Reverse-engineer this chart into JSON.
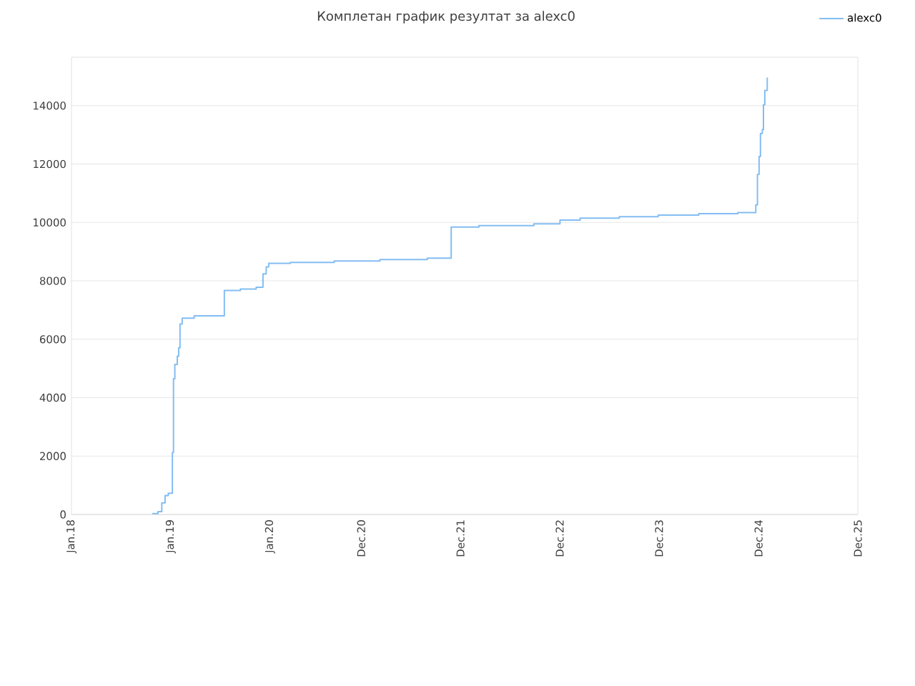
{
  "chart_data": {
    "type": "step",
    "title": "Комплетан график резултат за alexc0",
    "x": [
      "2018-10-25",
      "2018-11-15",
      "2018-11-29",
      "2018-12-11",
      "2018-12-23",
      "2019-01-07",
      "2019-01-11",
      "2019-01-16",
      "2019-01-25",
      "2019-01-30",
      "2019-02-04",
      "2019-02-12",
      "2019-03-28",
      "2019-07-17",
      "2019-09-14",
      "2019-11-11",
      "2019-12-06",
      "2019-12-18",
      "2019-12-27",
      "2020-03-16",
      "2020-08-24",
      "2021-02-08",
      "2021-08-01",
      "2021-10-28",
      "2022-02-07",
      "2022-08-28",
      "2022-12-02",
      "2023-02-14",
      "2023-07-08",
      "2023-11-28",
      "2024-04-25",
      "2024-09-16",
      "2024-11-21",
      "2024-11-27",
      "2024-12-03",
      "2024-12-08",
      "2024-12-15",
      "2024-12-19",
      "2024-12-24",
      "2025-01-02"
    ],
    "series": [
      {
        "name": "alexc0",
        "color": "#84bdf2",
        "values": [
          30,
          100,
          400,
          650,
          730,
          2120,
          4650,
          5140,
          5420,
          5710,
          6520,
          6720,
          6800,
          7670,
          7720,
          7780,
          8240,
          8480,
          8600,
          8630,
          8680,
          8730,
          8780,
          9840,
          9890,
          9950,
          10080,
          10150,
          10200,
          10250,
          10300,
          10340,
          10600,
          11650,
          12260,
          13050,
          13180,
          14030,
          14520,
          14960
        ]
      }
    ],
    "xlim": [
      "2018-01-01",
      "2025-12-01"
    ],
    "xticks": [
      {
        "value": "2018-01-01",
        "label": "Jan.18"
      },
      {
        "value": "2019-01-01",
        "label": "Jan.19"
      },
      {
        "value": "2020-01-01",
        "label": "Jan.20"
      },
      {
        "value": "2020-12-01",
        "label": "Dec.20"
      },
      {
        "value": "2021-12-01",
        "label": "Dec.21"
      },
      {
        "value": "2022-12-01",
        "label": "Dec.22"
      },
      {
        "value": "2023-12-01",
        "label": "Dec.23"
      },
      {
        "value": "2024-12-01",
        "label": "Dec.24"
      },
      {
        "value": "2025-12-01",
        "label": "Dec.25"
      }
    ],
    "ylim": [
      0,
      15660
    ],
    "yticks": [
      0,
      2000,
      4000,
      6000,
      8000,
      10000,
      12000,
      14000
    ],
    "grid": "y",
    "legend": "top right",
    "marker": "none",
    "line_style": "solid"
  }
}
